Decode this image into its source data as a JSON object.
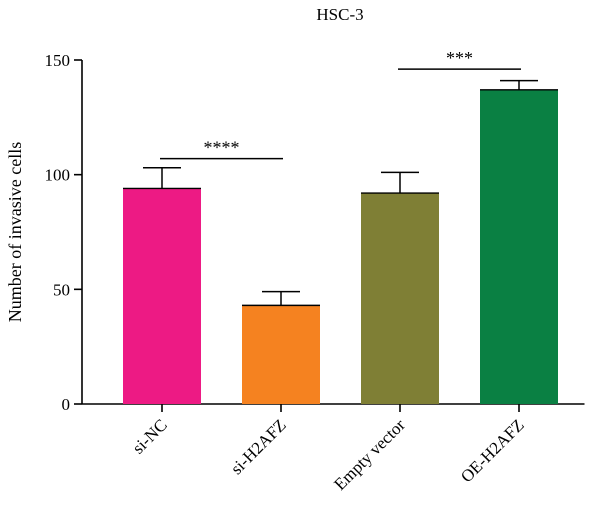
{
  "chart_data": {
    "type": "bar",
    "title": "HSC-3",
    "xlabel": "",
    "ylabel": "Number of invasive cells",
    "ylim": [
      0,
      150
    ],
    "yticks": [
      0,
      50,
      100,
      150
    ],
    "categories": [
      "si-NC",
      "si-H2AFZ",
      "Empty vector",
      "OE-H2AFZ"
    ],
    "values": [
      94,
      43,
      92,
      137
    ],
    "errors": [
      9,
      6,
      9,
      4
    ],
    "colors": [
      "#ED1A84",
      "#F58220",
      "#7F7F35",
      "#0A8043"
    ],
    "grid": false,
    "significance": [
      {
        "from": 0,
        "to": 1,
        "label": "****",
        "y": 107
      },
      {
        "from": 2,
        "to": 3,
        "label": "***",
        "y": 146
      }
    ]
  }
}
